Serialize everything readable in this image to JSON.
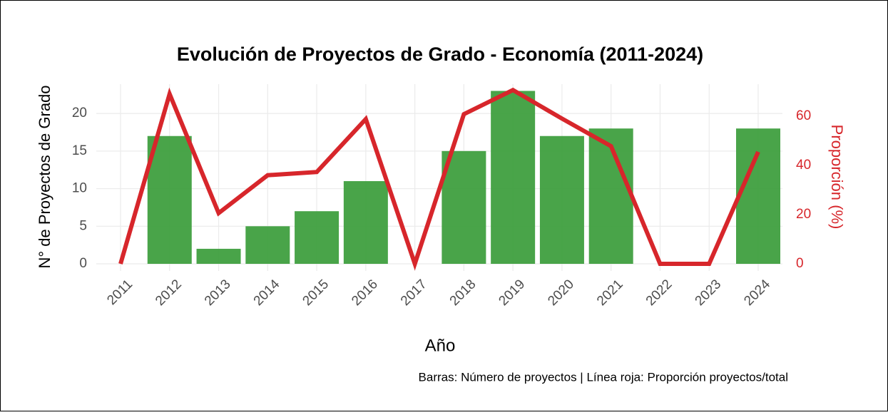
{
  "chart_data": {
    "type": "bar-line",
    "title": "Evolución de Proyectos de Grado - Economía (2011-2024)",
    "caption": "Barras: Número de proyectos | Línea roja: Proporción proyectos/total",
    "x_label": "Año",
    "y_label": "N° de Proyectos de Grado",
    "y2_label": "Proporción (%)",
    "categories": [
      "2011",
      "2012",
      "2013",
      "2014",
      "2015",
      "2016",
      "2017",
      "2018",
      "2019",
      "2020",
      "2021",
      "2022",
      "2023",
      "2024"
    ],
    "series": [
      {
        "type": "bar",
        "color": "#3f9f3f",
        "values": [
          0,
          17,
          2,
          5,
          7,
          11,
          0,
          15,
          23,
          17,
          18,
          0,
          0,
          18
        ]
      },
      {
        "type": "line",
        "color": "#d7262b",
        "axis": "y2",
        "values": [
          0,
          69,
          20.6,
          36,
          37.3,
          58.8,
          0,
          60.8,
          70.6,
          59,
          47.8,
          0,
          0,
          45.5
        ]
      }
    ],
    "ylim": [
      0,
      23.9
    ],
    "yticks": [
      0,
      5,
      10,
      15,
      20
    ],
    "y2lim": [
      0,
      73
    ],
    "y2ticks": [
      0,
      20,
      40,
      60
    ],
    "grid": true
  }
}
